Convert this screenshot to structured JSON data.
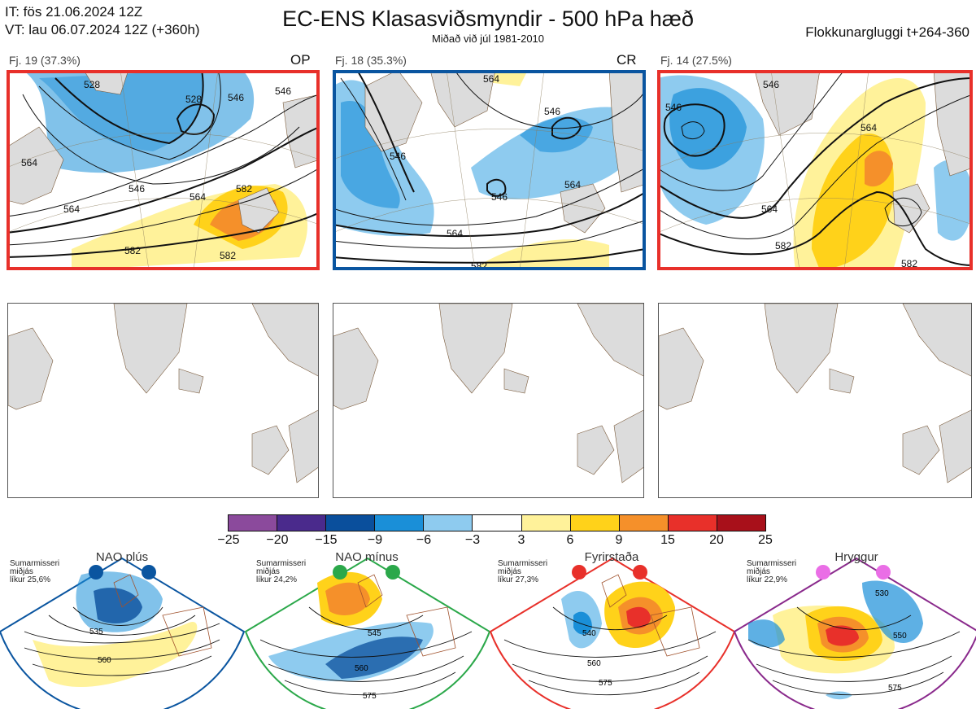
{
  "header": {
    "init_line": "IT: fös 21.06.2024 12Z",
    "valid_line": "VT: lau 06.07.2024 12Z  (+360h)",
    "title": "EC-ENS Klasasviðsmyndir - 500 hPa hæð",
    "subtitle": "Miðað við júl 1981-2010",
    "window": "Flokkunargluggi t+264-360"
  },
  "clusters": [
    {
      "label": "Fj. 19 (37.3%)",
      "tag": "OP",
      "frame_color": "#e8302a",
      "contours": [
        "564",
        "546",
        "528",
        "528",
        "546",
        "564",
        "546",
        "564",
        "582",
        "582",
        "582"
      ]
    },
    {
      "label": "Fj. 18 (35.3%)",
      "tag": "CR",
      "frame_color": "#0a55a0",
      "contours": [
        "564",
        "546",
        "546",
        "546",
        "564",
        "564",
        "582"
      ]
    },
    {
      "label": "Fj. 14 (27.5%)",
      "tag": "",
      "frame_color": "#e8302a",
      "contours": [
        "546",
        "546",
        "564",
        "564",
        "582",
        "582"
      ]
    }
  ],
  "colorbar": {
    "colors": [
      "#8b4a9c",
      "#4a2a8c",
      "#0a4f9c",
      "#1a8fd8",
      "#8ecbef",
      "#ffffff",
      "#fff29a",
      "#ffd21a",
      "#f5902a",
      "#e8302a",
      "#a8101a"
    ],
    "ticks": [
      "−25",
      "−20",
      "−15",
      "−9",
      "−6",
      "−3",
      "3",
      "6",
      "9",
      "15",
      "20",
      "25"
    ]
  },
  "regimes": [
    {
      "name": "NAO plús",
      "season": "Sumarmisseri",
      "subset": "miðjás",
      "prob": "líkur 25,6%",
      "color": "#0a55a0",
      "contours": [
        "535",
        "560"
      ]
    },
    {
      "name": "NAO mínus",
      "season": "Sumarmisseri",
      "subset": "miðjás",
      "prob": "líkur 24,2%",
      "color": "#2ba84a",
      "contours": [
        "545",
        "560",
        "575"
      ]
    },
    {
      "name": "Fyrirstaða",
      "season": "Sumarmisseri",
      "subset": "miðjás",
      "prob": "líkur 27,3%",
      "color": "#e8302a",
      "contours": [
        "540",
        "560",
        "575"
      ]
    },
    {
      "name": "Hryggur",
      "season": "Sumarmisseri",
      "subset": "miðjás",
      "prob": "líkur 22,9%",
      "color": "#8a2a8c",
      "contours": [
        "530",
        "550",
        "575"
      ]
    }
  ]
}
